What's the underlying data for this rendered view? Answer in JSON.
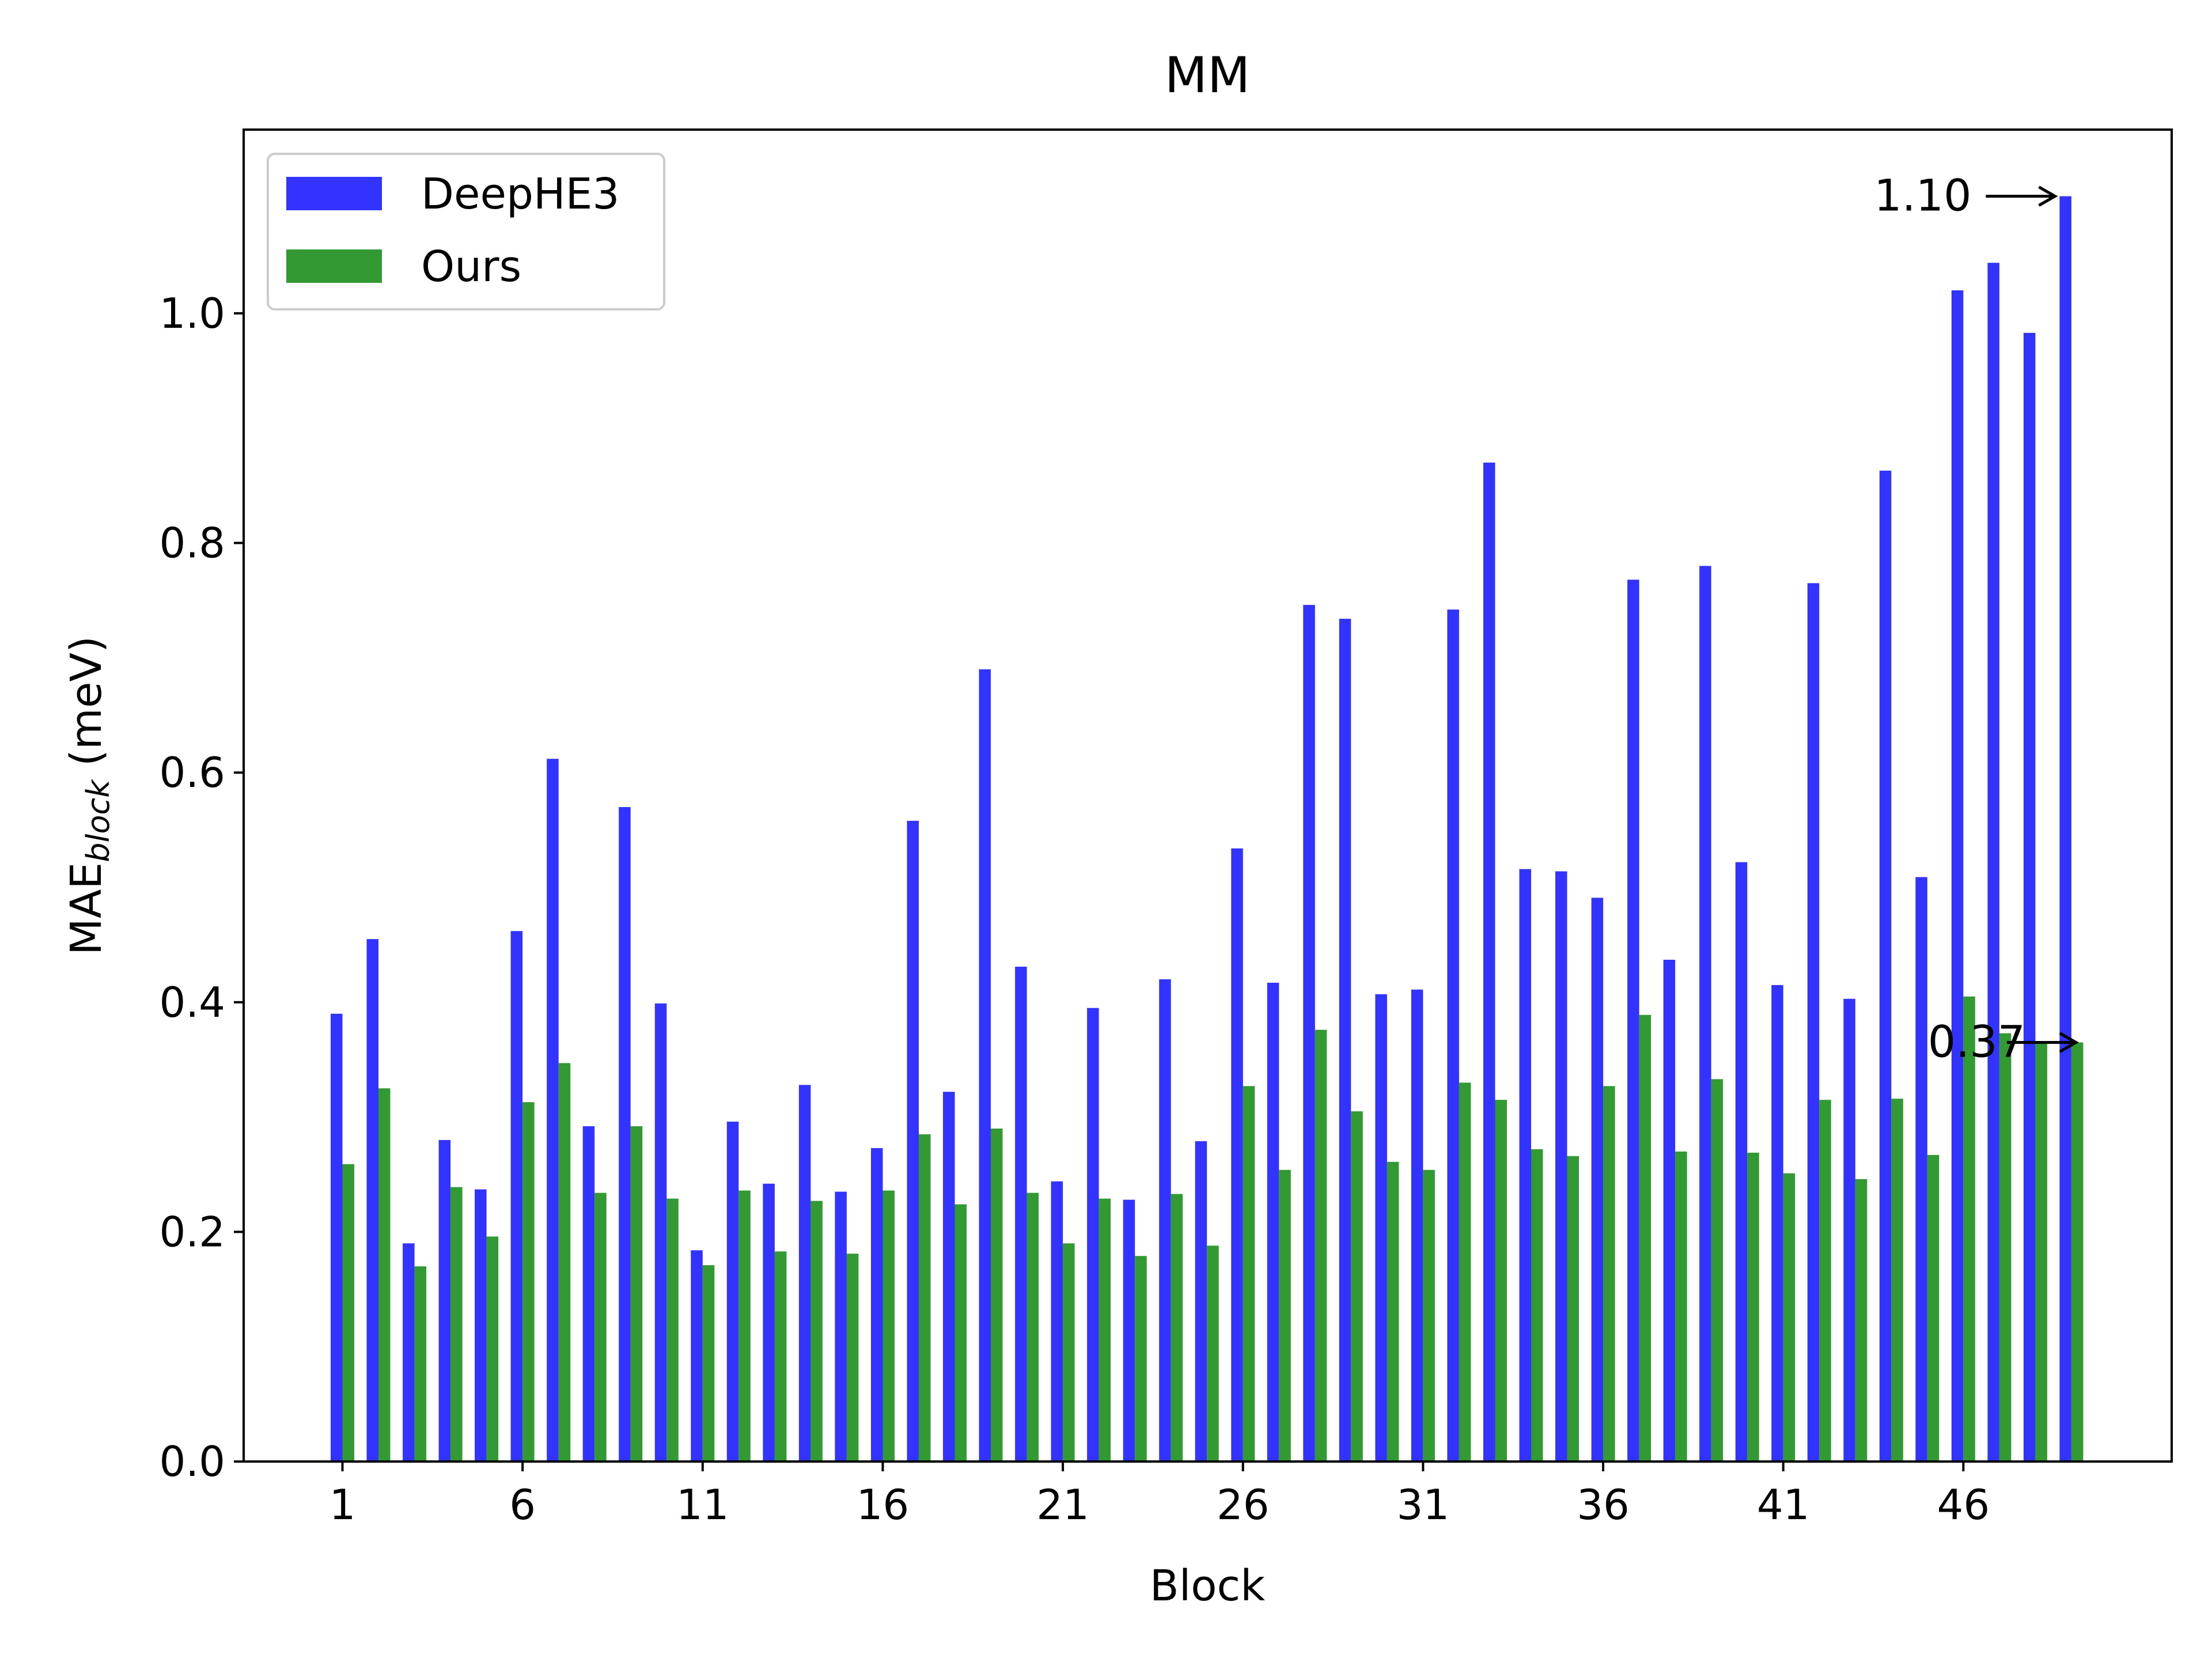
{
  "chart_data": {
    "type": "bar",
    "title": "MM",
    "xlabel": "Block",
    "ylabel_main": "MAE",
    "ylabel_sub": "block",
    "ylabel_unit": " (meV)",
    "ylim": [
      0,
      1.16
    ],
    "yticks": [
      "0.0",
      "0.2",
      "0.4",
      "0.6",
      "0.8",
      "1.0"
    ],
    "xticks": [
      "1",
      "6",
      "11",
      "16",
      "21",
      "26",
      "31",
      "36",
      "41",
      "46"
    ],
    "legend_position": "top-left",
    "grid": false,
    "categories": [
      1,
      2,
      3,
      4,
      5,
      6,
      7,
      8,
      9,
      10,
      11,
      12,
      13,
      14,
      15,
      16,
      17,
      18,
      19,
      20,
      21,
      22,
      23,
      24,
      25,
      26,
      27,
      28,
      29,
      30,
      31,
      32,
      33,
      34,
      35,
      36,
      37,
      38,
      39,
      40,
      41,
      42,
      43,
      44,
      45,
      46,
      47,
      48,
      49
    ],
    "series": [
      {
        "name": "DeepHE3",
        "color": "#3333ff",
        "values": [
          0.39,
          0.455,
          0.19,
          0.28,
          0.237,
          0.462,
          0.612,
          0.292,
          0.57,
          0.399,
          0.184,
          0.296,
          0.242,
          0.328,
          0.235,
          0.273,
          0.558,
          0.322,
          0.69,
          0.431,
          0.244,
          0.395,
          0.228,
          0.42,
          0.279,
          0.534,
          0.417,
          0.746,
          0.734,
          0.407,
          0.411,
          0.742,
          0.87,
          0.516,
          0.514,
          0.491,
          0.768,
          0.437,
          0.78,
          0.522,
          0.415,
          0.765,
          0.403,
          0.863,
          0.509,
          1.02,
          1.044,
          0.983,
          1.102
        ]
      },
      {
        "name": "Ours",
        "color": "#339933",
        "values": [
          0.259,
          0.325,
          0.17,
          0.239,
          0.196,
          0.313,
          0.347,
          0.234,
          0.292,
          0.229,
          0.171,
          0.236,
          0.183,
          0.227,
          0.181,
          0.236,
          0.285,
          0.224,
          0.29,
          0.234,
          0.19,
          0.229,
          0.179,
          0.233,
          0.188,
          0.327,
          0.254,
          0.376,
          0.305,
          0.261,
          0.254,
          0.33,
          0.315,
          0.272,
          0.266,
          0.327,
          0.389,
          0.27,
          0.333,
          0.269,
          0.251,
          0.315,
          0.246,
          0.316,
          0.267,
          0.405,
          0.373,
          0.366,
          0.365
        ]
      }
    ],
    "annotations": [
      {
        "text": "1.10",
        "series": 0,
        "category": 49
      },
      {
        "text": "0.37",
        "series": 1,
        "category": 49
      }
    ]
  }
}
